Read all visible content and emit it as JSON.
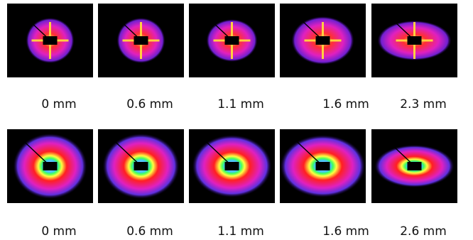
{
  "rows": [
    {
      "labels": [
        "0 mm",
        "0.6 mm",
        "1.1 mm",
        "1.6 mm",
        "2.3 mm"
      ]
    },
    {
      "labels": [
        "0 mm",
        "0.6 mm",
        "1.1 mm",
        "1.6 mm",
        "2.6 mm"
      ]
    }
  ]
}
